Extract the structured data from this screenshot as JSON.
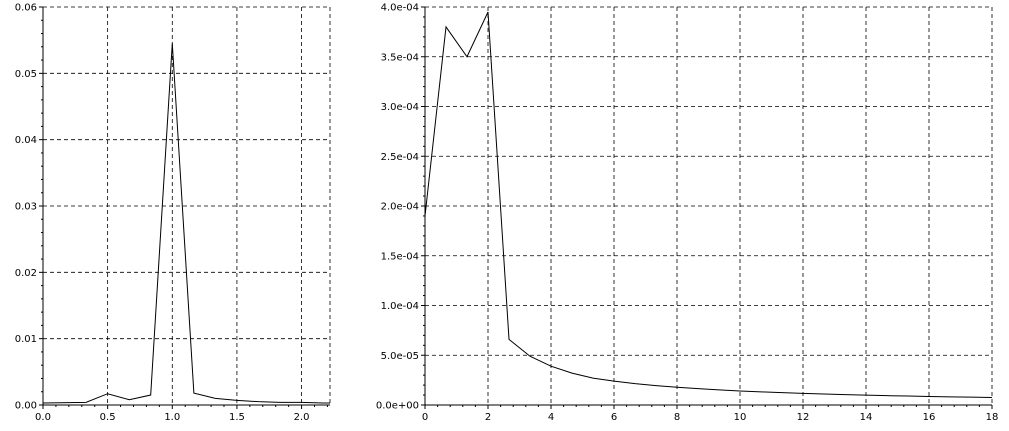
{
  "chart_data": [
    {
      "type": "line",
      "title": "",
      "xlabel": "",
      "ylabel": "",
      "xlim": [
        0.0,
        2.22
      ],
      "ylim": [
        0.0,
        0.06
      ],
      "grid": true,
      "x_ticks": [
        0.0,
        0.5,
        1.0,
        1.5,
        2.0
      ],
      "x_tick_labels": [
        "0.0",
        "0.5",
        "1.0",
        "1.5",
        "2.0"
      ],
      "y_ticks": [
        0.0,
        0.01,
        0.02,
        0.03,
        0.04,
        0.05,
        0.06
      ],
      "y_tick_labels": [
        "0.00",
        "0.01",
        "0.02",
        "0.03",
        "0.04",
        "0.05",
        "0.06"
      ],
      "series": [
        {
          "x": [
            0.0,
            0.333,
            0.5,
            0.667,
            0.833,
            1.0,
            1.167,
            1.333,
            1.5,
            1.667,
            1.833,
            2.0,
            2.167,
            2.22
          ],
          "y": [
            0.0003,
            0.0004,
            0.0017,
            0.0008,
            0.0015,
            0.0545,
            0.0018,
            0.001,
            0.0007,
            0.0005,
            0.0004,
            0.0004,
            0.0003,
            0.0003
          ]
        }
      ]
    },
    {
      "type": "line",
      "title": "",
      "xlabel": "",
      "ylabel": "",
      "xlim": [
        0,
        18
      ],
      "ylim": [
        0,
        0.0004
      ],
      "grid": true,
      "x_ticks": [
        0,
        2,
        4,
        6,
        8,
        10,
        12,
        14,
        16,
        18
      ],
      "x_tick_labels": [
        "0",
        "2",
        "4",
        "6",
        "8",
        "10",
        "12",
        "14",
        "16",
        "18"
      ],
      "y_ticks": [
        0,
        5e-05,
        0.0001,
        0.00015,
        0.0002,
        0.00025,
        0.0003,
        0.00035,
        0.0004
      ],
      "y_tick_labels": [
        "0.0e+00",
        "5.0e-05",
        "1.0e-04",
        "1.5e-04",
        "2.0e-04",
        "2.5e-04",
        "3.0e-04",
        "3.5e-04",
        "4.0e-04"
      ],
      "series": [
        {
          "x": [
            0,
            0.667,
            1.333,
            2.0,
            2.667,
            3.333,
            4.0,
            4.667,
            5.333,
            6.0,
            6.667,
            7.333,
            8.0,
            8.667,
            9.333,
            10.0,
            10.667,
            11.333,
            12.0,
            12.667,
            13.333,
            14.0,
            14.667,
            15.333,
            16.0,
            16.667,
            17.333,
            18.0
          ],
          "y": [
            0.00019,
            0.00038,
            0.00035,
            0.000395,
            6.6e-05,
            4.9e-05,
            3.9e-05,
            3.2e-05,
            2.7e-05,
            2.4e-05,
            2.15e-05,
            1.95e-05,
            1.78e-05,
            1.64e-05,
            1.52e-05,
            1.41e-05,
            1.32e-05,
            1.24e-05,
            1.17e-05,
            1.1e-05,
            1.04e-05,
            9.9e-06,
            9.4e-06,
            9e-06,
            8.6e-06,
            8.2e-06,
            7.9e-06,
            7.6e-06
          ]
        }
      ]
    }
  ]
}
